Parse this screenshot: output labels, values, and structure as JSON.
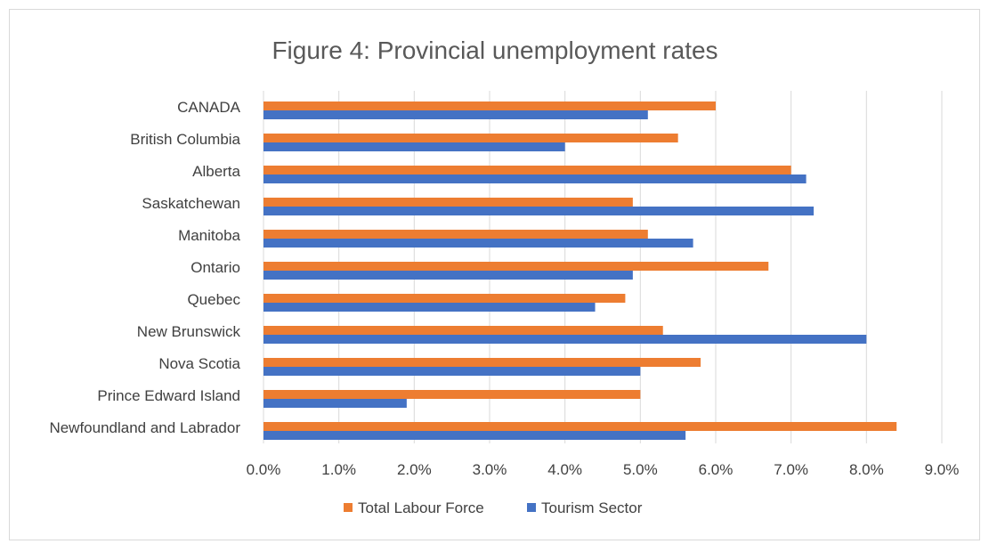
{
  "chart_data": {
    "type": "bar",
    "orientation": "horizontal",
    "title": "Figure 4: Provincial unemployment rates",
    "categories": [
      "CANADA",
      "British Columbia",
      "Alberta",
      "Saskatchewan",
      "Manitoba",
      "Ontario",
      "Quebec",
      "New Brunswick",
      "Nova Scotia",
      "Prince Edward Island",
      "Newfoundland and Labrador"
    ],
    "series": [
      {
        "name": "Total Labour Force",
        "color": "#ED7D31",
        "values": [
          6.0,
          5.5,
          7.0,
          4.9,
          5.1,
          6.7,
          4.8,
          5.3,
          5.8,
          5.0,
          8.4
        ]
      },
      {
        "name": "Tourism Sector",
        "color": "#4472C4",
        "values": [
          5.1,
          4.0,
          7.2,
          7.3,
          5.7,
          4.9,
          4.4,
          8.0,
          5.0,
          1.9,
          5.6
        ]
      }
    ],
    "xlim": [
      0,
      9
    ],
    "xticks": [
      "0.0%",
      "1.0%",
      "2.0%",
      "3.0%",
      "4.0%",
      "5.0%",
      "6.0%",
      "7.0%",
      "8.0%",
      "9.0%"
    ],
    "grid": "vertical",
    "legend_position": "bottom"
  }
}
